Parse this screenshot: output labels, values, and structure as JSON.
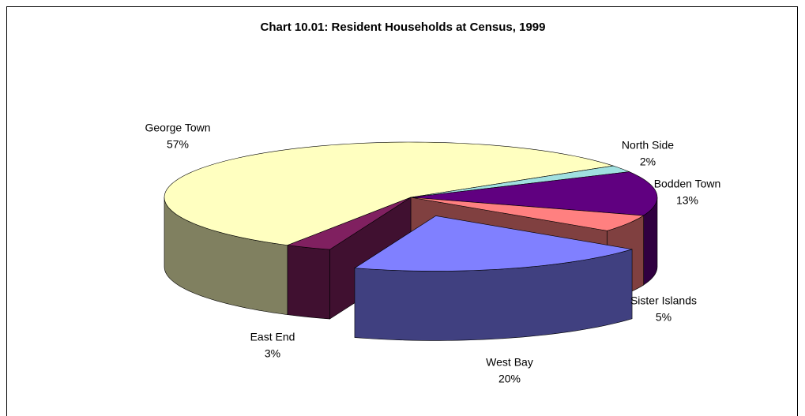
{
  "chart_data": {
    "type": "pie",
    "title": "Chart 10.01: Resident Households at Census, 1999",
    "categories": [
      "George Town",
      "North Side",
      "Bodden Town",
      "Sister Islands",
      "West Bay",
      "East End"
    ],
    "values": [
      57,
      2,
      13,
      5,
      20,
      3
    ],
    "value_labels": [
      "57%",
      "2%",
      "13%",
      "5%",
      "20%",
      "3%"
    ],
    "colors": [
      "#ffffc0",
      "#a0e0e0",
      "#600080",
      "#ff8080",
      "#8080ff",
      "#802060"
    ]
  }
}
